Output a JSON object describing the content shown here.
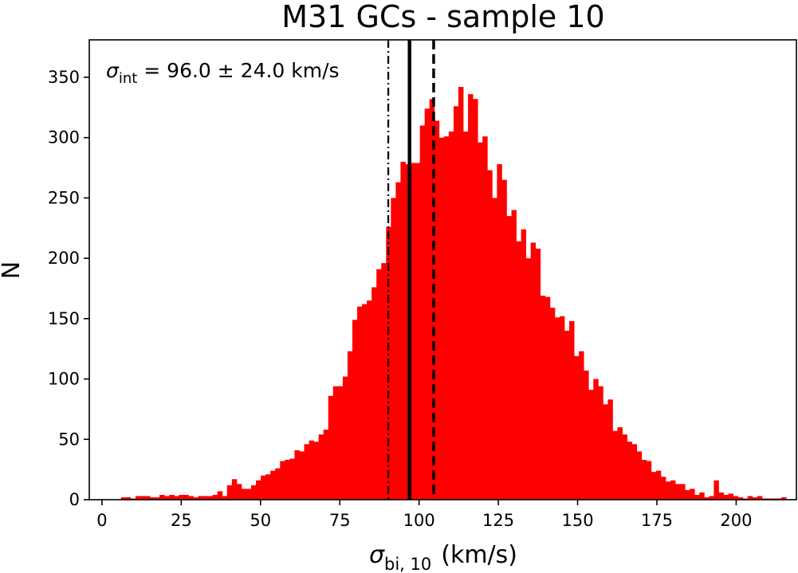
{
  "chart_data": {
    "type": "histogram",
    "title": "M31 GCs - sample 10",
    "xlabel": {
      "symbol": "σ",
      "subscript": "bi, 10",
      "unit": "(km/s)"
    },
    "ylabel": "N",
    "xlim": [
      -4,
      219
    ],
    "ylim": [
      0,
      381
    ],
    "xticks": [
      0,
      25,
      50,
      75,
      100,
      125,
      150,
      175,
      200
    ],
    "yticks": [
      0,
      50,
      100,
      150,
      200,
      250,
      300,
      350
    ],
    "bins": {
      "start": 6,
      "width": 1.52,
      "counts": [
        2,
        2,
        1,
        3,
        3,
        3,
        2,
        2,
        4,
        3,
        4,
        3,
        4,
        4,
        3,
        2,
        3,
        3,
        3,
        4,
        7,
        3,
        12,
        17,
        13,
        9,
        9,
        12,
        16,
        20,
        21,
        24,
        26,
        32,
        33,
        34,
        41,
        40,
        46,
        49,
        48,
        54,
        58,
        86,
        94,
        94,
        102,
        123,
        149,
        160,
        162,
        165,
        176,
        191,
        196,
        226,
        250,
        263,
        280,
        278,
        279,
        279,
        310,
        324,
        332,
        314,
        300,
        301,
        305,
        326,
        342,
        305,
        336,
        332,
        296,
        301,
        273,
        250,
        278,
        265,
        235,
        240,
        214,
        224,
        200,
        213,
        208,
        169,
        168,
        159,
        151,
        152,
        140,
        148,
        119,
        123,
        107,
        91,
        100,
        94,
        79,
        83,
        57,
        60,
        54,
        48,
        46,
        40,
        33,
        32,
        23,
        24,
        19,
        15,
        16,
        13,
        13,
        8,
        9,
        4,
        6,
        2,
        3,
        16,
        6,
        4,
        5,
        3,
        2,
        1,
        3,
        2,
        3,
        1,
        1,
        1,
        1,
        2
      ]
    },
    "vlines": [
      {
        "name": "lower-bound",
        "x": 90.3,
        "style": "dashdot"
      },
      {
        "name": "median",
        "x": 97.0,
        "style": "solid"
      },
      {
        "name": "upper-bound",
        "x": 104.6,
        "style": "dashed"
      }
    ],
    "annotation": {
      "symbol": "σ",
      "subscript": "int",
      "text": " = 96.0 ± 24.0 km/s"
    },
    "colors": {
      "bars": "#ff0000",
      "axes": "#000000",
      "lines": "#000000"
    }
  }
}
